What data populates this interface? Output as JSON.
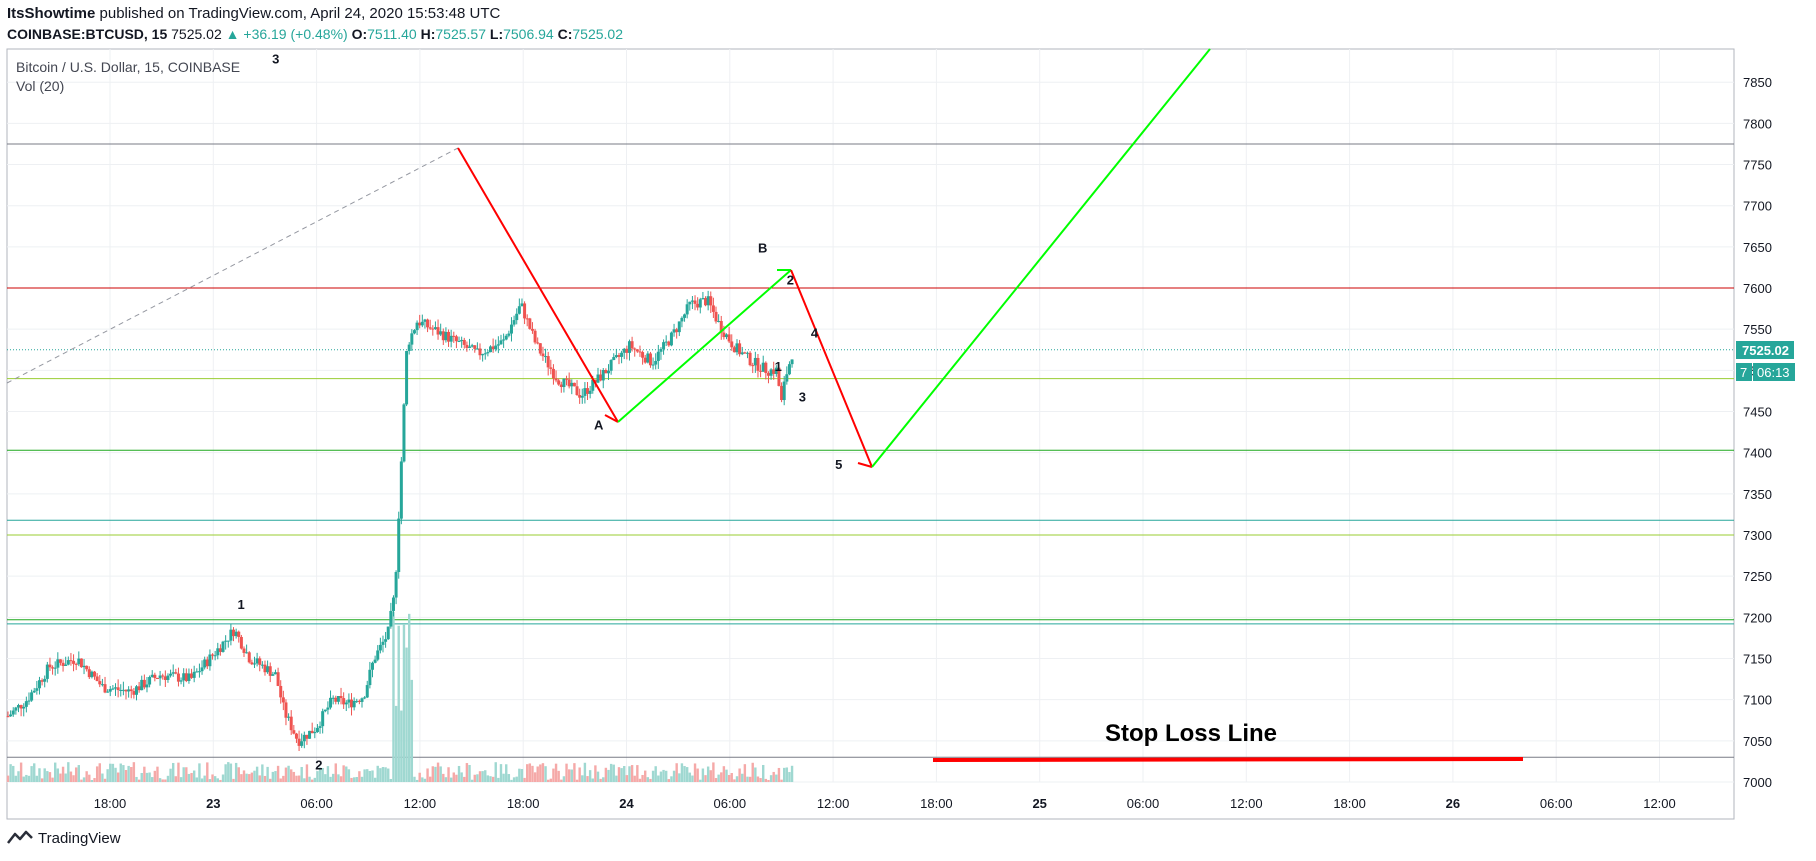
{
  "header": {
    "author": "ItsShowtime",
    "published_text": "published on TradingView.com, April 24, 2020 15:53:48 UTC"
  },
  "ohlc": {
    "symbol": "COINBASE:BTCUSD, 15",
    "last": "7525.02",
    "change": "▲ +36.19 (+0.48%)",
    "o_label": "O:",
    "o": "7511.40",
    "h_label": "H:",
    "h": "7525.57",
    "l_label": "L:",
    "l": "7506.94",
    "c_label": "C:",
    "c": "7525.02"
  },
  "legend": {
    "title": "Bitcoin / U.S. Dollar, 15, COINBASE",
    "volume": "Vol (20)"
  },
  "price_labels": {
    "last": "7525.02",
    "countdown": "06:13",
    "partial": "7"
  },
  "footer": {
    "brand": "TradingView"
  },
  "colors": {
    "up": "#26a69a",
    "down": "#ef5350",
    "green_line": "#00ff00",
    "red_line": "#ff0000",
    "resistance": "#cc0000",
    "support_green": "#1fa81f",
    "support_olive": "#9acd32",
    "support_teal": "#26a69a"
  },
  "chart_data": {
    "type": "candlestick",
    "title": "Bitcoin / U.S. Dollar, 15, COINBASE",
    "ylim": [
      7000,
      7870
    ],
    "yticks": [
      7000,
      7050,
      7100,
      7150,
      7200,
      7250,
      7300,
      7350,
      7400,
      7450,
      7500,
      7550,
      7600,
      7650,
      7700,
      7750,
      7800,
      7850
    ],
    "xticks": [
      "18:00",
      "23",
      "06:00",
      "12:00",
      "18:00",
      "24",
      "06:00",
      "12:00",
      "18:00",
      "25",
      "06:00",
      "12:00",
      "18:00",
      "26",
      "06:00",
      "12:00"
    ],
    "xtick_bold": [
      false,
      true,
      false,
      false,
      false,
      true,
      false,
      false,
      false,
      true,
      false,
      false,
      false,
      true,
      false,
      false
    ],
    "horizontal_levels": [
      {
        "price": 7775,
        "color": "gray"
      },
      {
        "price": 7600,
        "color": "red"
      },
      {
        "price": 7525.02,
        "color": "teal-dotted"
      },
      {
        "price": 7490,
        "color": "olive"
      },
      {
        "price": 7403,
        "color": "green"
      },
      {
        "price": 7318,
        "color": "teal"
      },
      {
        "price": 7300,
        "color": "olive"
      },
      {
        "price": 7197,
        "color": "green"
      },
      {
        "price": 7192,
        "color": "teal"
      },
      {
        "price": 7030,
        "color": "gray"
      }
    ],
    "wave_labels": [
      {
        "text": "3",
        "t": 0.155,
        "price": 7873
      },
      {
        "text": "1",
        "t": 0.135,
        "price": 7210
      },
      {
        "text": "2",
        "t": 0.18,
        "price": 7015
      },
      {
        "text": "A",
        "t": 0.342,
        "price": 7428
      },
      {
        "text": "B",
        "t": 0.437,
        "price": 7643
      },
      {
        "text": "2",
        "t": 0.453,
        "price": 7604
      },
      {
        "text": "4",
        "t": 0.467,
        "price": 7540
      },
      {
        "text": "1",
        "t": 0.446,
        "price": 7499
      },
      {
        "text": "3",
        "t": 0.46,
        "price": 7462
      },
      {
        "text": "5",
        "t": 0.481,
        "price": 7380
      }
    ],
    "annotations": [
      {
        "text": "Stop Loss Line",
        "price": 7030
      }
    ]
  }
}
